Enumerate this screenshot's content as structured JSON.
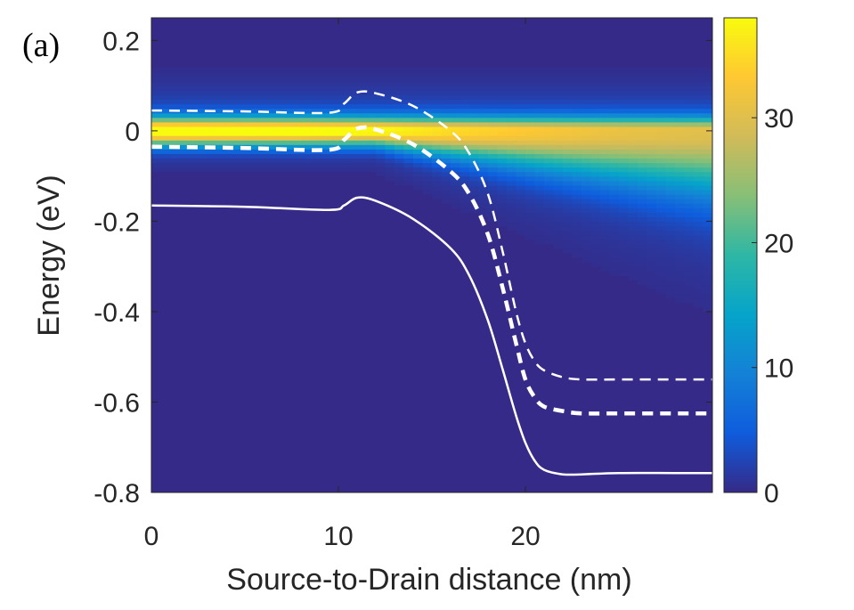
{
  "panel_label": "(a)",
  "chart_data": {
    "type": "heatmap",
    "xlabel": "Source-to-Drain distance (nm)",
    "ylabel": "Energy (eV)",
    "xlim": [
      0,
      30
    ],
    "ylim": [
      -0.8,
      0.25
    ],
    "xticks": [
      0,
      10,
      20
    ],
    "xtick_labels": [
      "0",
      "10",
      "20"
    ],
    "yticks": [
      0.2,
      0,
      -0.2,
      -0.4,
      -0.6,
      -0.8
    ],
    "ytick_labels": [
      "0.2",
      "0",
      "-0.2",
      "-0.4",
      "-0.6",
      "-0.8"
    ],
    "colorbar": {
      "range": [
        0,
        38
      ],
      "ticks": [
        0,
        10,
        20,
        30
      ],
      "tick_labels": [
        "0",
        "10",
        "20",
        "30"
      ],
      "colormap": [
        "#352a87",
        "#0f5cdd",
        "#1481d6",
        "#06a4ca",
        "#2eb7a4",
        "#87bf77",
        "#d1bb59",
        "#fec832",
        "#f9fb0e"
      ]
    },
    "intensity_band": {
      "center_energy": 0.0,
      "peak_value": [
        [
          0,
          38
        ],
        [
          8,
          37
        ],
        [
          12,
          35
        ],
        [
          16,
          32
        ],
        [
          20,
          30
        ],
        [
          25,
          28
        ],
        [
          30,
          27
        ]
      ]
    },
    "lines": [
      {
        "style": "solid",
        "x": [
          0,
          5,
          9.5,
          10.3,
          11,
          12,
          14,
          16,
          17,
          18,
          18.8,
          19.5,
          20,
          20.5,
          21,
          22,
          23,
          25,
          28,
          30
        ],
        "y": [
          -0.165,
          -0.168,
          -0.175,
          -0.165,
          -0.148,
          -0.155,
          -0.195,
          -0.26,
          -0.32,
          -0.42,
          -0.53,
          -0.63,
          -0.69,
          -0.73,
          -0.75,
          -0.76,
          -0.76,
          -0.757,
          -0.757,
          -0.757
        ]
      },
      {
        "style": "dashed",
        "x": [
          0,
          5,
          9.5,
          10.3,
          11,
          12,
          14,
          16,
          17,
          18,
          18.8,
          19.5,
          20,
          20.5,
          21,
          22,
          23,
          25,
          28,
          30
        ],
        "y": [
          0.045,
          0.043,
          0.04,
          0.06,
          0.085,
          0.083,
          0.055,
          0.0,
          -0.05,
          -0.14,
          -0.27,
          -0.4,
          -0.47,
          -0.51,
          -0.53,
          -0.545,
          -0.55,
          -0.55,
          -0.55,
          -0.55
        ]
      },
      {
        "style": "dashed-thick",
        "x": [
          0,
          5,
          9.5,
          10.3,
          11,
          12,
          14,
          16,
          17,
          18,
          18.8,
          19.5,
          20,
          20.5,
          21,
          22,
          23,
          25,
          28,
          30
        ],
        "y": [
          -0.035,
          -0.038,
          -0.042,
          -0.02,
          0.005,
          0.003,
          -0.03,
          -0.09,
          -0.14,
          -0.23,
          -0.35,
          -0.47,
          -0.55,
          -0.59,
          -0.61,
          -0.62,
          -0.625,
          -0.625,
          -0.625,
          -0.625
        ]
      }
    ]
  }
}
